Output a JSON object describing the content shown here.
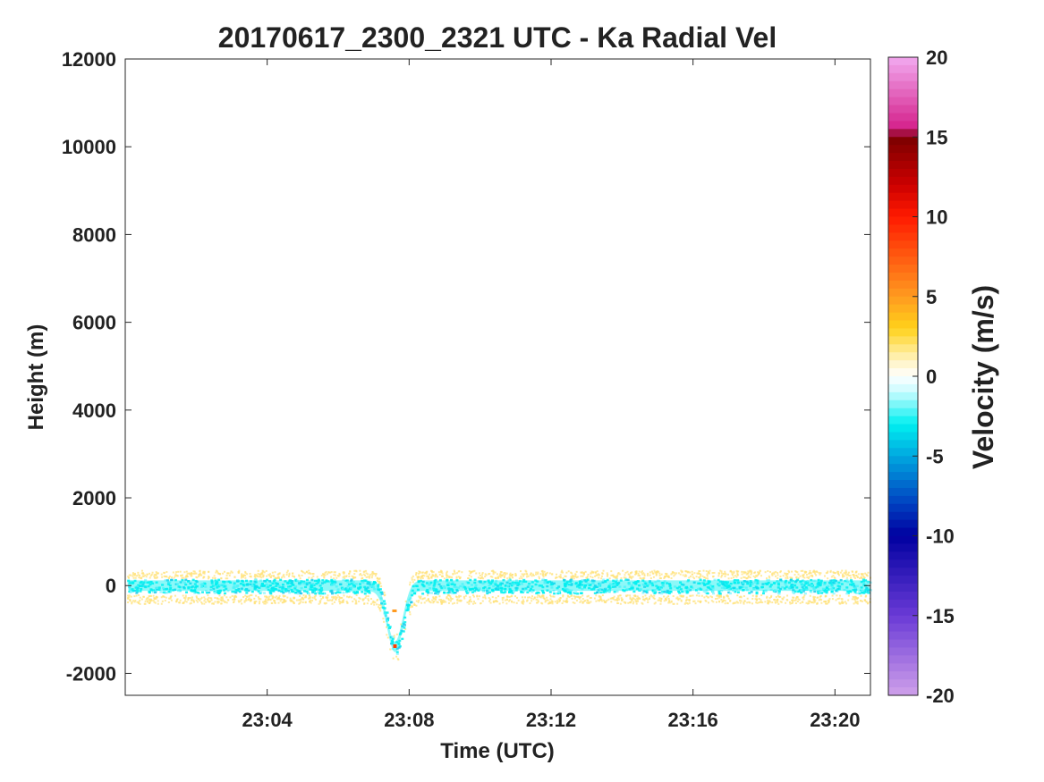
{
  "chart_data": {
    "type": "heatmap",
    "title": "20170617_2300_2321 UTC - Ka Radial Vel",
    "xlabel": "Time (UTC)",
    "ylabel": "Height (m)",
    "x_ticks": [
      "23:04",
      "23:08",
      "23:12",
      "23:16",
      "23:20"
    ],
    "x_tick_minutes": [
      4,
      8,
      12,
      16,
      20
    ],
    "xlim_minutes": [
      0,
      21
    ],
    "y_ticks": [
      12000,
      10000,
      8000,
      6000,
      4000,
      2000,
      0,
      -2000
    ],
    "ylim": [
      -2500,
      12000
    ],
    "grid": false,
    "colorbar": {
      "label": "Velocity (m/s)",
      "ticks": [
        20,
        15,
        10,
        5,
        0,
        -5,
        -10,
        -15,
        -20
      ],
      "limits": [
        -20,
        20
      ],
      "colors": {
        "pos_20": "#f2aaf0",
        "pos_15": "#7a0000",
        "pos_12": "#cc0000",
        "pos_10": "#ff1a00",
        "pos_5": "#ff9a20",
        "pos_3": "#ffd21a",
        "pos_1": "#fff3c0",
        "zero": "#ffffff",
        "neg_1": "#c8fbff",
        "neg_3": "#00f0f0",
        "neg_5": "#00a8e0",
        "neg_8": "#0040c0",
        "neg_10": "#0000a0",
        "neg_15": "#6a3ad6",
        "neg_20": "#cfa0ea"
      }
    },
    "echo": {
      "height_range": [
        -300,
        300
      ],
      "dip_time_minutes": 7.6,
      "dip_min_height": -1400,
      "core_color": "#00f0f0",
      "fringe_color": "#ffe27a"
    }
  }
}
